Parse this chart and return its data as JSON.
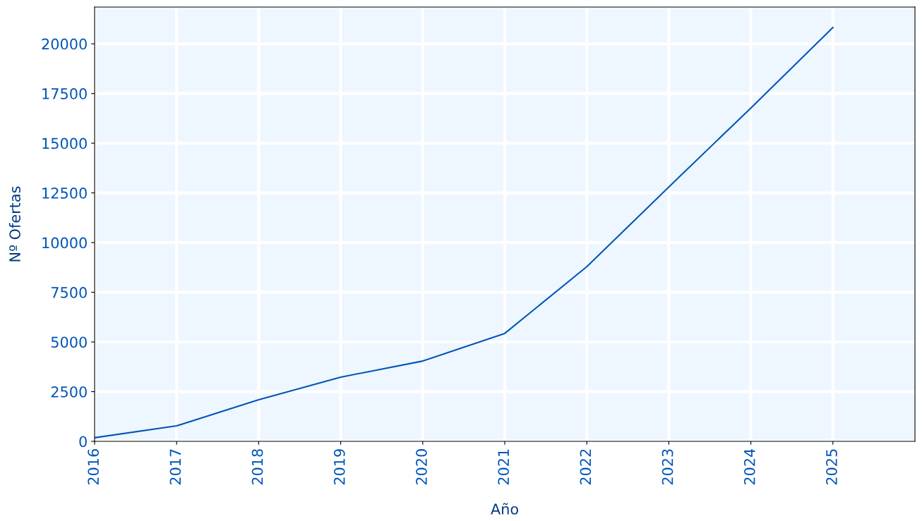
{
  "chart_data": {
    "type": "line",
    "xlabel": "Año",
    "ylabel": "Nº Ofertas",
    "x": [
      2016,
      2017,
      2018,
      2019,
      2020,
      2021,
      2022,
      2023,
      2024,
      2025
    ],
    "series": [
      {
        "color": "#0055b8",
        "values": [
          180,
          780,
          2090,
          3230,
          4040,
          5430,
          8790,
          12800,
          16770,
          20820
        ]
      }
    ],
    "xlim": [
      2016,
      2026
    ],
    "xticks": [
      2016,
      2017,
      2018,
      2019,
      2020,
      2021,
      2022,
      2023,
      2024,
      2025
    ],
    "ylim": [
      0,
      21850
    ],
    "yticks": [
      0,
      2500,
      5000,
      7500,
      10000,
      12500,
      15000,
      17500,
      20000
    ],
    "grid": true,
    "legend": false,
    "marker": "none",
    "line_style": "solid"
  }
}
